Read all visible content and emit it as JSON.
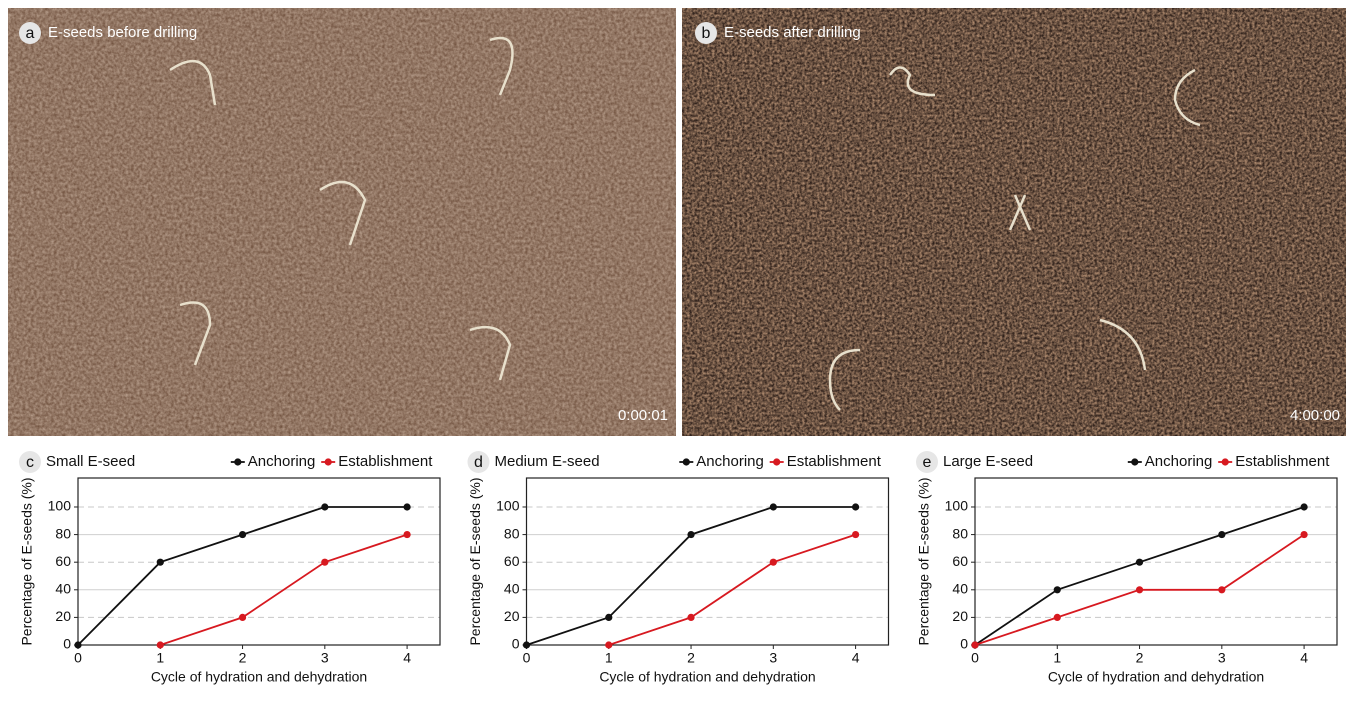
{
  "photos": [
    {
      "letter": "a",
      "caption": "E-seeds before drilling",
      "time": "0:00:01"
    },
    {
      "letter": "b",
      "caption": "E-seeds after drilling",
      "time": "4:00:00"
    }
  ],
  "chart_data": [
    {
      "type": "line",
      "letter": "c",
      "title": "Small E-seed",
      "x_label": "Cycle of hydration and dehydration",
      "y_label": "Percentage of E-seeds (%)",
      "x": [
        0,
        1,
        2,
        3,
        4
      ],
      "xlim": [
        0,
        4.4
      ],
      "xticks": [
        0,
        1,
        2,
        3,
        4
      ],
      "ylim": [
        0,
        121
      ],
      "yticks": [
        0,
        20,
        40,
        60,
        80,
        100
      ],
      "grid": true,
      "legend": "top-right",
      "series": [
        {
          "name": "Anchoring",
          "color": "#111111",
          "values": [
            0,
            60,
            80,
            100,
            100
          ]
        },
        {
          "name": "Establishment",
          "color": "#d71920",
          "values": [
            null,
            0,
            20,
            60,
            80
          ]
        }
      ]
    },
    {
      "type": "line",
      "letter": "d",
      "title": "Medium E-seed",
      "x_label": "Cycle of hydration and dehydration",
      "y_label": "Percentage of E-seeds (%)",
      "x": [
        0,
        1,
        2,
        3,
        4
      ],
      "xlim": [
        0,
        4.4
      ],
      "xticks": [
        0,
        1,
        2,
        3,
        4
      ],
      "ylim": [
        0,
        121
      ],
      "yticks": [
        0,
        20,
        40,
        60,
        80,
        100
      ],
      "grid": true,
      "legend": "top-right",
      "series": [
        {
          "name": "Anchoring",
          "color": "#111111",
          "values": [
            0,
            20,
            80,
            100,
            100
          ]
        },
        {
          "name": "Establishment",
          "color": "#d71920",
          "values": [
            null,
            0,
            20,
            60,
            80
          ]
        }
      ]
    },
    {
      "type": "line",
      "letter": "e",
      "title": "Large E-seed",
      "x_label": "Cycle of hydration and dehydration",
      "y_label": "Percentage of E-seeds (%)",
      "x": [
        0,
        1,
        2,
        3,
        4
      ],
      "xlim": [
        0,
        4.4
      ],
      "xticks": [
        0,
        1,
        2,
        3,
        4
      ],
      "ylim": [
        0,
        121
      ],
      "yticks": [
        0,
        20,
        40,
        60,
        80,
        100
      ],
      "grid": true,
      "legend": "top-right",
      "series": [
        {
          "name": "Anchoring",
          "color": "#111111",
          "values": [
            0,
            40,
            60,
            80,
            100
          ]
        },
        {
          "name": "Establishment",
          "color": "#d71920",
          "values": [
            0,
            20,
            40,
            40,
            80
          ]
        }
      ]
    }
  ]
}
